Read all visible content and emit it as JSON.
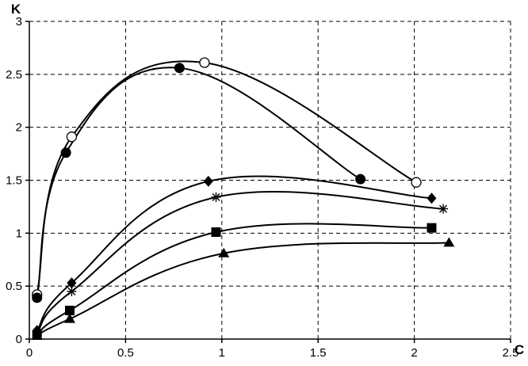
{
  "chart_data": {
    "type": "line",
    "title": "",
    "xlabel": "C",
    "ylabel": "K",
    "xlim": [
      0,
      2.5
    ],
    "ylim": [
      0,
      3
    ],
    "xticks": [
      "0",
      "0.5",
      "1",
      "1.5",
      "2",
      "2.5"
    ],
    "yticks": [
      "0",
      "0.5",
      "1",
      "1.5",
      "2",
      "2.5",
      "3"
    ],
    "grid": true,
    "gridStyle": "dashed",
    "legend": "none",
    "lineColor": "#000000",
    "series": [
      {
        "marker": "circle-open",
        "points": [
          [
            0.04,
            0.42
          ],
          [
            0.22,
            1.91
          ],
          [
            0.91,
            2.61
          ],
          [
            2.01,
            1.48
          ]
        ]
      },
      {
        "marker": "circle-filled",
        "points": [
          [
            0.04,
            0.39
          ],
          [
            0.19,
            1.76
          ],
          [
            0.78,
            2.56
          ],
          [
            1.72,
            1.51
          ]
        ]
      },
      {
        "marker": "diamond",
        "points": [
          [
            0.04,
            0.08
          ],
          [
            0.22,
            0.53
          ],
          [
            0.93,
            1.49
          ],
          [
            2.09,
            1.33
          ]
        ]
      },
      {
        "marker": "star",
        "points": [
          [
            0.04,
            0.06
          ],
          [
            0.22,
            0.45
          ],
          [
            0.97,
            1.34
          ],
          [
            2.15,
            1.23
          ]
        ]
      },
      {
        "marker": "square",
        "points": [
          [
            0.04,
            0.04
          ],
          [
            0.21,
            0.27
          ],
          [
            0.97,
            1.01
          ],
          [
            2.09,
            1.05
          ]
        ]
      },
      {
        "marker": "triangle",
        "points": [
          [
            0.04,
            0.03
          ],
          [
            0.21,
            0.19
          ],
          [
            1.01,
            0.81
          ],
          [
            2.18,
            0.91
          ]
        ]
      }
    ]
  }
}
